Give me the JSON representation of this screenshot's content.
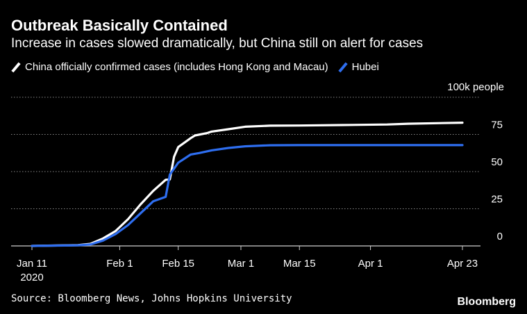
{
  "chart_data": {
    "type": "line",
    "title": "Outbreak Basically Contained",
    "subtitle": "Increase in cases slowed dramatically, but China still on alert for cases",
    "y_unit": "100k people",
    "ylim": [
      0,
      100000
    ],
    "yticks": [
      {
        "value": 0,
        "label": "0"
      },
      {
        "value": 25000,
        "label": "25"
      },
      {
        "value": 50000,
        "label": "50"
      },
      {
        "value": 75000,
        "label": "75"
      }
    ],
    "xlim": [
      "2020-01-11",
      "2020-04-25"
    ],
    "xticks": [
      {
        "date": "2020-01-11",
        "label": "Jan 11",
        "sublabel": "2020"
      },
      {
        "date": "2020-02-01",
        "label": "Feb 1"
      },
      {
        "date": "2020-02-15",
        "label": "Feb 15"
      },
      {
        "date": "2020-03-01",
        "label": "Mar 1"
      },
      {
        "date": "2020-03-15",
        "label": "Mar 15"
      },
      {
        "date": "2020-04-01",
        "label": "Apr 1"
      },
      {
        "date": "2020-04-23",
        "label": "Apr 23"
      }
    ],
    "grid": true,
    "legend_position": "top-left",
    "series": [
      {
        "name": "China officially confirmed cases (includes Hong Kong and Macau)",
        "color": "#ffffff",
        "points": [
          [
            "2020-01-11",
            0
          ],
          [
            "2020-01-22",
            500
          ],
          [
            "2020-01-25",
            1400
          ],
          [
            "2020-01-28",
            5000
          ],
          [
            "2020-01-31",
            10000
          ],
          [
            "2020-02-03",
            18000
          ],
          [
            "2020-02-06",
            28000
          ],
          [
            "2020-02-09",
            37000
          ],
          [
            "2020-02-12",
            44500
          ],
          [
            "2020-02-13",
            44700
          ],
          [
            "2020-02-14",
            60000
          ],
          [
            "2020-02-15",
            66500
          ],
          [
            "2020-02-18",
            72500
          ],
          [
            "2020-02-19",
            74300
          ],
          [
            "2020-02-22",
            76000
          ],
          [
            "2020-02-23",
            76900
          ],
          [
            "2020-02-27",
            78500
          ],
          [
            "2020-03-02",
            80200
          ],
          [
            "2020-03-08",
            80900
          ],
          [
            "2020-03-15",
            81000
          ],
          [
            "2020-03-25",
            81300
          ],
          [
            "2020-04-05",
            81700
          ],
          [
            "2020-04-10",
            82200
          ],
          [
            "2020-04-23",
            82900
          ]
        ]
      },
      {
        "name": "Hubei",
        "color": "#2e6ef0",
        "points": [
          [
            "2020-01-11",
            0
          ],
          [
            "2020-01-22",
            400
          ],
          [
            "2020-01-25",
            1000
          ],
          [
            "2020-01-28",
            3600
          ],
          [
            "2020-01-31",
            8000
          ],
          [
            "2020-02-03",
            14000
          ],
          [
            "2020-02-06",
            22000
          ],
          [
            "2020-02-09",
            30000
          ],
          [
            "2020-02-12",
            33000
          ],
          [
            "2020-02-13",
            48000
          ],
          [
            "2020-02-15",
            56000
          ],
          [
            "2020-02-18",
            61500
          ],
          [
            "2020-02-20",
            62500
          ],
          [
            "2020-02-23",
            64300
          ],
          [
            "2020-02-27",
            65900
          ],
          [
            "2020-03-02",
            67000
          ],
          [
            "2020-03-08",
            67700
          ],
          [
            "2020-03-15",
            67800
          ],
          [
            "2020-04-01",
            67800
          ],
          [
            "2020-04-23",
            67800
          ]
        ]
      }
    ]
  },
  "legend": {
    "china_label": "China officially confirmed cases (includes Hong Kong and Macau)",
    "hubei_label": "Hubei"
  },
  "source": "Source: Bloomberg News, Johns Hopkins University",
  "logo": "Bloomberg"
}
